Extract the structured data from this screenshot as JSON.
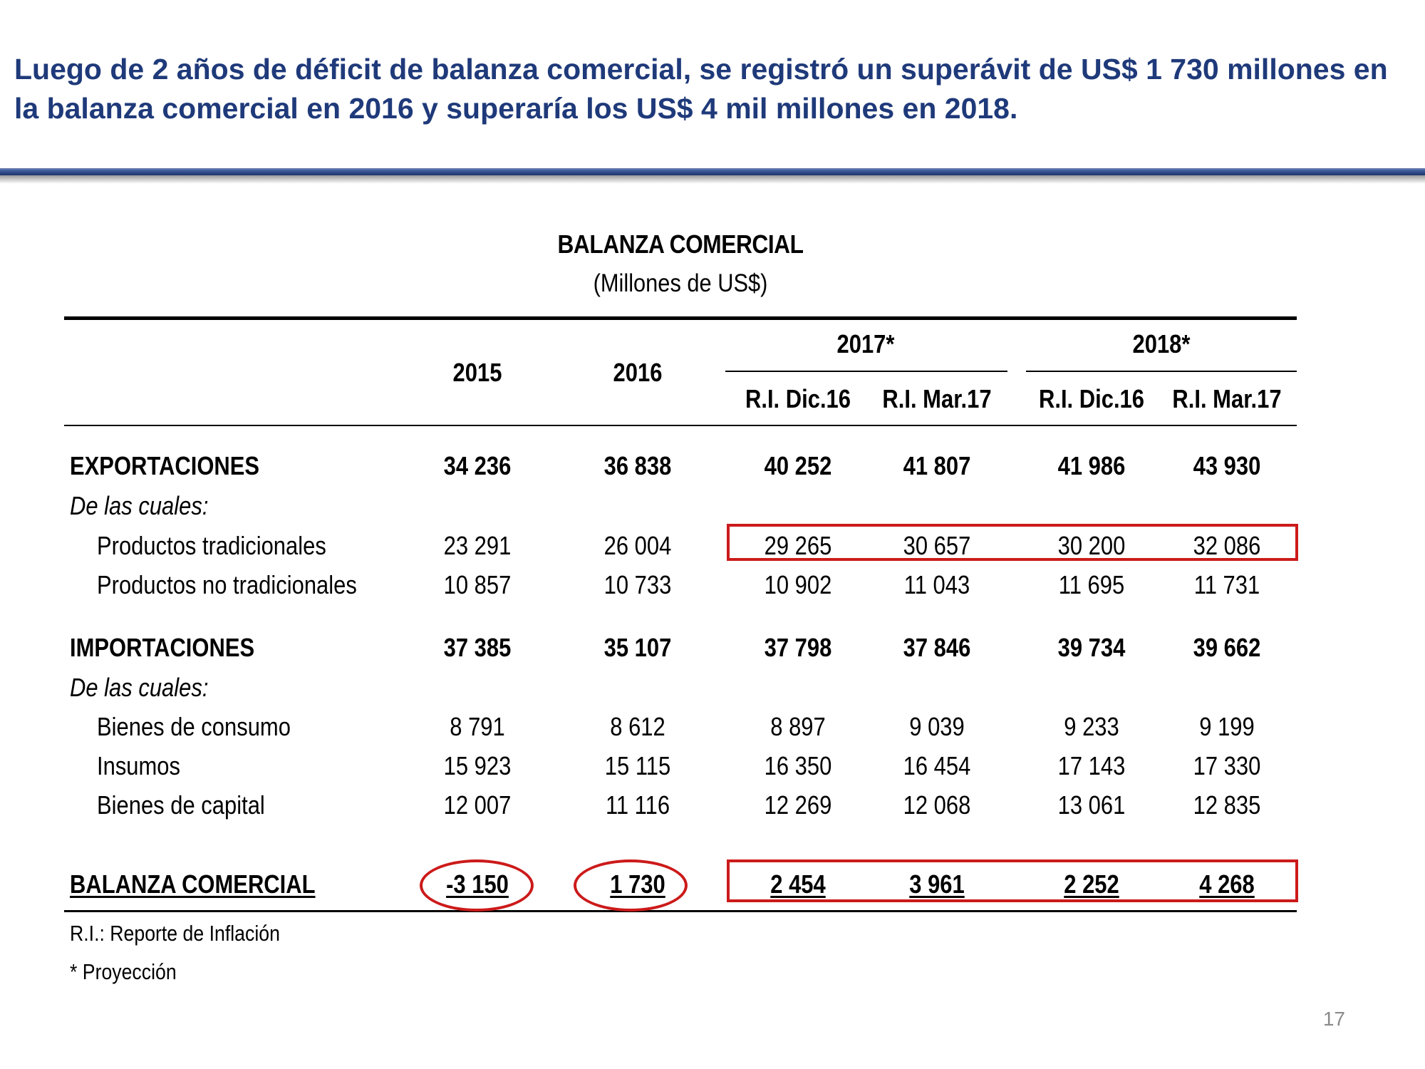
{
  "slide": {
    "headline": "Luego de 2 años de déficit de balanza comercial, se registró un superávit de US$ 1 730 millones en la balanza comercial en 2016 y superaría los US$ 4 mil millones en 2018.",
    "page_number": "17"
  },
  "table": {
    "title": "BALANZA COMERCIAL",
    "subtitle": "(Millones de US$)",
    "headers": {
      "y2015": "2015",
      "y2016": "2016",
      "y2017": "2017*",
      "y2018": "2018*",
      "sub": [
        "R.I. Dic.16",
        "R.I. Mar.17",
        "R.I. Dic.16",
        "R.I. Mar.17"
      ]
    },
    "rows": {
      "exportaciones": {
        "label": "EXPORTACIONES",
        "values": [
          "34 236",
          "36 838",
          "40 252",
          "41 807",
          "41 986",
          "43 930"
        ]
      },
      "de_las_cuales_1": "De las cuales:",
      "tradicionales": {
        "label": "Productos tradicionales",
        "values": [
          "23 291",
          "26 004",
          "29 265",
          "30 657",
          "30 200",
          "32 086"
        ]
      },
      "no_tradicionales": {
        "label": "Productos no tradicionales",
        "values": [
          "10 857",
          "10 733",
          "10 902",
          "11 043",
          "11 695",
          "11 731"
        ]
      },
      "importaciones": {
        "label": "IMPORTACIONES",
        "values": [
          "37 385",
          "35 107",
          "37 798",
          "37 846",
          "39 734",
          "39 662"
        ]
      },
      "de_las_cuales_2": "De las cuales:",
      "consumo": {
        "label": "Bienes de consumo",
        "values": [
          "8 791",
          "8 612",
          "8 897",
          "9 039",
          "9 233",
          "9 199"
        ]
      },
      "insumos": {
        "label": "Insumos",
        "values": [
          "15 923",
          "15 115",
          "16 350",
          "16 454",
          "17 143",
          "17 330"
        ]
      },
      "capital": {
        "label": "Bienes de capital",
        "values": [
          "12 007",
          "11 116",
          "12 269",
          "12 068",
          "13 061",
          "12 835"
        ]
      },
      "balanza": {
        "label": "BALANZA COMERCIAL",
        "values": [
          "-3 150",
          "1 730",
          "2 454",
          "3 961",
          "2 252",
          "4 268"
        ]
      }
    },
    "footnotes": [
      "R.I.: Reporte de Inflación",
      "* Proyección"
    ],
    "highlight_color": "#cc1a1a"
  }
}
